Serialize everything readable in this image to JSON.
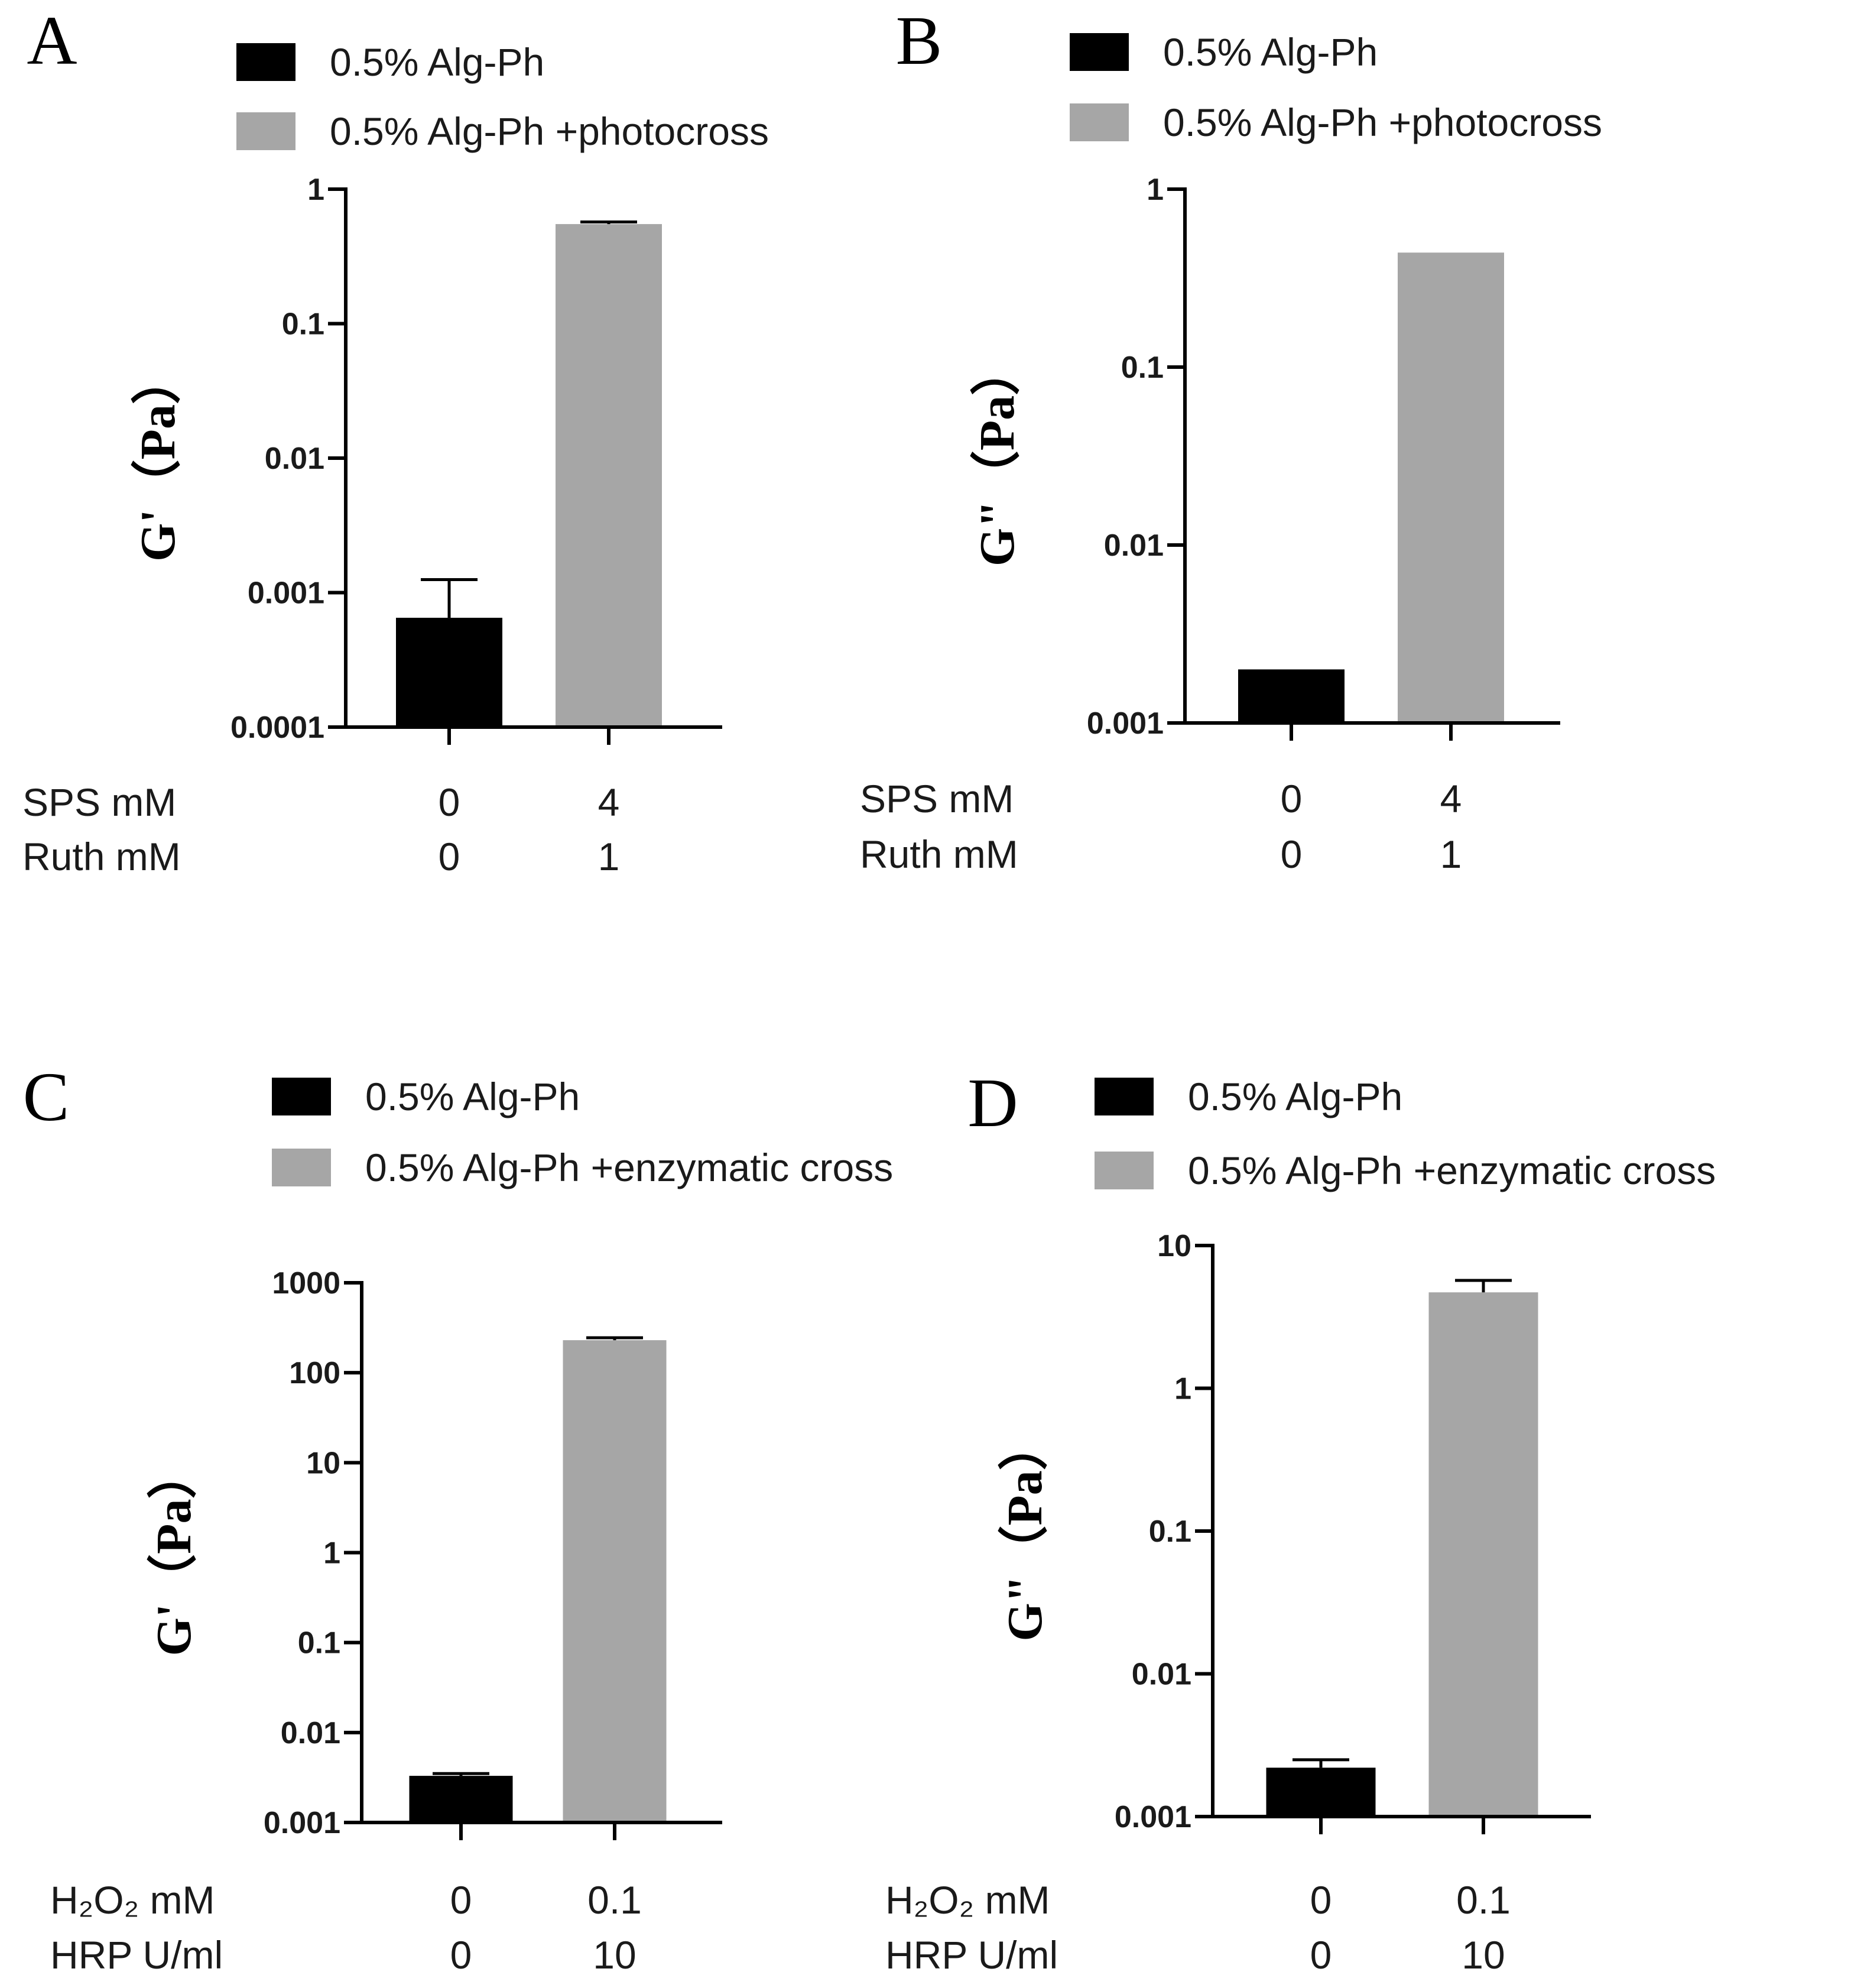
{
  "figure": {
    "colors": {
      "series1": "#000000",
      "series2": "#a6a6a6",
      "axis": "#000000",
      "text": "#1a1a1a"
    }
  },
  "chart_data": [
    {
      "panel_label": "A",
      "type": "bar",
      "scale": "log",
      "ylabel": "G'（Pa）",
      "ylim": [
        0.0001,
        1
      ],
      "yticks": [
        "0.0001",
        "0.001",
        "0.01",
        "0.1",
        "1"
      ],
      "legend": [
        {
          "label": "0.5% Alg-Ph",
          "color": "#000000"
        },
        {
          "label": "0.5% Alg-Ph +photocross",
          "color": "#a6a6a6"
        }
      ],
      "xrows": [
        {
          "label": "SPS mM",
          "values": [
            "0",
            "4"
          ]
        },
        {
          "label": "Ruth mM",
          "values": [
            "0",
            "1"
          ]
        }
      ],
      "bars": [
        {
          "series": "0.5% Alg-Ph",
          "value": 0.00065,
          "error_upper": 0.00125
        },
        {
          "series": "0.5% Alg-Ph +photocross",
          "value": 0.55,
          "error_upper": 0.57
        }
      ]
    },
    {
      "panel_label": "B",
      "type": "bar",
      "scale": "log",
      "ylabel": "G\"（Pa）",
      "ylim": [
        0.001,
        1
      ],
      "yticks": [
        "0.001",
        "0.01",
        "0.1",
        "1"
      ],
      "legend": [
        {
          "label": "0.5% Alg-Ph",
          "color": "#000000"
        },
        {
          "label": "0.5% Alg-Ph +photocross",
          "color": "#a6a6a6"
        }
      ],
      "xrows": [
        {
          "label": "SPS mM",
          "values": [
            "0",
            "4"
          ]
        },
        {
          "label": "Ruth mM",
          "values": [
            "0",
            "1"
          ]
        }
      ],
      "bars": [
        {
          "series": "0.5% Alg-Ph",
          "value": 0.002,
          "error_upper": null
        },
        {
          "series": "0.5% Alg-Ph +photocross",
          "value": 0.44,
          "error_upper": null
        }
      ]
    },
    {
      "panel_label": "C",
      "type": "bar",
      "scale": "log",
      "ylabel": "G'（Pa）",
      "ylim": [
        0.001,
        1000
      ],
      "yticks": [
        "0.001",
        "0.01",
        "0.1",
        "1",
        "10",
        "100",
        "1000"
      ],
      "legend": [
        {
          "label": "0.5% Alg-Ph",
          "color": "#000000"
        },
        {
          "label": "0.5% Alg-Ph +enzymatic cross",
          "color": "#a6a6a6"
        }
      ],
      "xrows": [
        {
          "label": "H₂O₂ mM",
          "values": [
            "0",
            "0.1"
          ]
        },
        {
          "label": "HRP U/ml",
          "values": [
            "0",
            "10"
          ]
        }
      ],
      "bars": [
        {
          "series": "0.5% Alg-Ph",
          "value": 0.0033,
          "error_upper": 0.0035
        },
        {
          "series": "0.5% Alg-Ph +enzymatic cross",
          "value": 230,
          "error_upper": 245
        }
      ]
    },
    {
      "panel_label": "D",
      "type": "bar",
      "scale": "log",
      "ylabel": "G\"（Pa）",
      "ylim": [
        0.001,
        10
      ],
      "yticks": [
        "0.001",
        "0.01",
        "0.1",
        "1",
        "10"
      ],
      "legend": [
        {
          "label": "0.5% Alg-Ph",
          "color": "#000000"
        },
        {
          "label": "0.5% Alg-Ph +enzymatic cross",
          "color": "#a6a6a6"
        }
      ],
      "xrows": [
        {
          "label": "H₂O₂ mM",
          "values": [
            "0",
            "0.1"
          ]
        },
        {
          "label": "HRP U/ml",
          "values": [
            "0",
            "10"
          ]
        }
      ],
      "bars": [
        {
          "series": "0.5% Alg-Ph",
          "value": 0.0022,
          "error_upper": 0.0025
        },
        {
          "series": "0.5% Alg-Ph +enzymatic cross",
          "value": 4.7,
          "error_upper": 5.7
        }
      ]
    }
  ]
}
